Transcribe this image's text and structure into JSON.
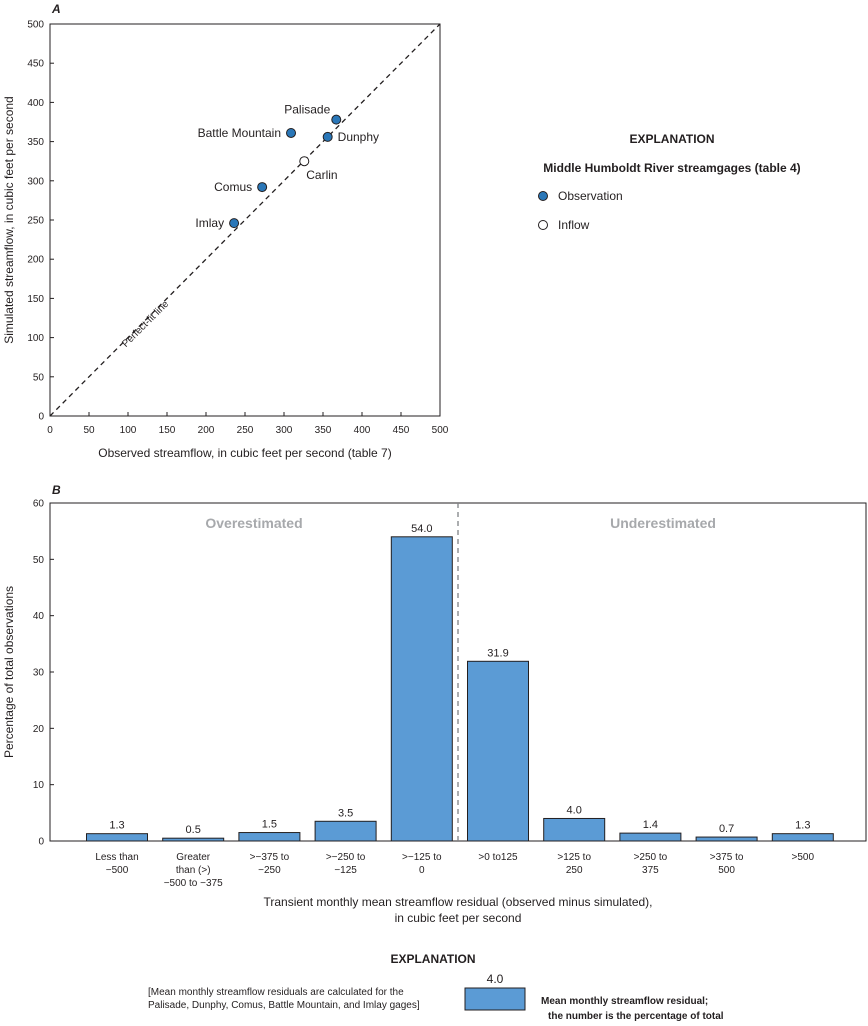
{
  "colors": {
    "observation": "#2a77b8",
    "bar": "#5b9bd5",
    "axis": "#231f20",
    "divider": "#808285",
    "zone_text": "#a7a9ac"
  },
  "chart_data": [
    {
      "type": "scatter",
      "panel_label": "A",
      "xlabel": "Observed streamflow, in cubic feet per second (table 7)",
      "ylabel": "Simulated streamflow, in cubic feet per second",
      "xlim": [
        0,
        500
      ],
      "ylim": [
        0,
        500
      ],
      "x_ticks": [
        "0",
        "50",
        "100",
        "150",
        "200",
        "250",
        "300",
        "350",
        "400",
        "450",
        "500"
      ],
      "y_ticks": [
        "0",
        "50",
        "100",
        "150",
        "200",
        "250",
        "300",
        "350",
        "400",
        "450",
        "500"
      ],
      "grid": false,
      "reference_line": {
        "label": "Perfect-fit line",
        "style": "dashed",
        "from": [
          0,
          0
        ],
        "to": [
          500,
          500
        ]
      },
      "points": [
        {
          "name": "Palisade",
          "x": 367,
          "y": 378,
          "kind": "observation"
        },
        {
          "name": "Battle Mountain",
          "x": 309,
          "y": 361,
          "kind": "observation"
        },
        {
          "name": "Dunphy",
          "x": 356,
          "y": 356,
          "kind": "observation"
        },
        {
          "name": "Carlin",
          "x": 326,
          "y": 325,
          "kind": "inflow"
        },
        {
          "name": "Comus",
          "x": 272,
          "y": 292,
          "kind": "observation"
        },
        {
          "name": "Imlay",
          "x": 236,
          "y": 246,
          "kind": "observation"
        }
      ],
      "legend": {
        "title": "EXPLANATION",
        "subtitle": "Middle Humboldt River streamgages (table 4)",
        "items": [
          {
            "label": "Observation",
            "kind": "observation"
          },
          {
            "label": "Inflow",
            "kind": "inflow"
          }
        ]
      }
    },
    {
      "type": "bar",
      "panel_label": "B",
      "xlabel_lines": [
        "Transient monthly mean streamflow residual (observed minus simulated),",
        "in cubic feet per second"
      ],
      "ylabel": "Percentage of total observations",
      "ylim": [
        0,
        60
      ],
      "y_ticks": [
        "0",
        "10",
        "20",
        "30",
        "40",
        "50",
        "60"
      ],
      "grid": false,
      "categories": [
        [
          "Less than",
          "−500"
        ],
        [
          "Greater",
          "than (>)",
          "−500 to −375"
        ],
        [
          ">−375 to",
          "−250"
        ],
        [
          ">−250 to",
          "−125"
        ],
        [
          ">−125 to",
          "0"
        ],
        [
          ">0 to125"
        ],
        [
          ">125 to",
          "250"
        ],
        [
          ">250 to",
          "375"
        ],
        [
          ">375 to",
          "500"
        ],
        [
          ">500"
        ]
      ],
      "values": [
        1.3,
        0.5,
        1.5,
        3.5,
        54.0,
        31.9,
        4.0,
        1.4,
        0.7,
        1.3
      ],
      "value_labels": [
        "1.3",
        "0.5",
        "1.5",
        "3.5",
        "54.0",
        "31.9",
        "4.0",
        "1.4",
        "0.7",
        "1.3"
      ],
      "zones": {
        "left": "Overestimated",
        "right": "Underestimated"
      },
      "legend": {
        "title": "EXPLANATION",
        "sample_value": "4.0",
        "item_lines": [
          "Mean monthly streamflow residual;",
          "the number is the percentage of total"
        ],
        "note_lines": [
          "[Mean monthly streamflow residuals are calculated for the",
          "Palisade, Dunphy, Comus, Battle Mountain, and Imlay gages]"
        ]
      }
    }
  ]
}
